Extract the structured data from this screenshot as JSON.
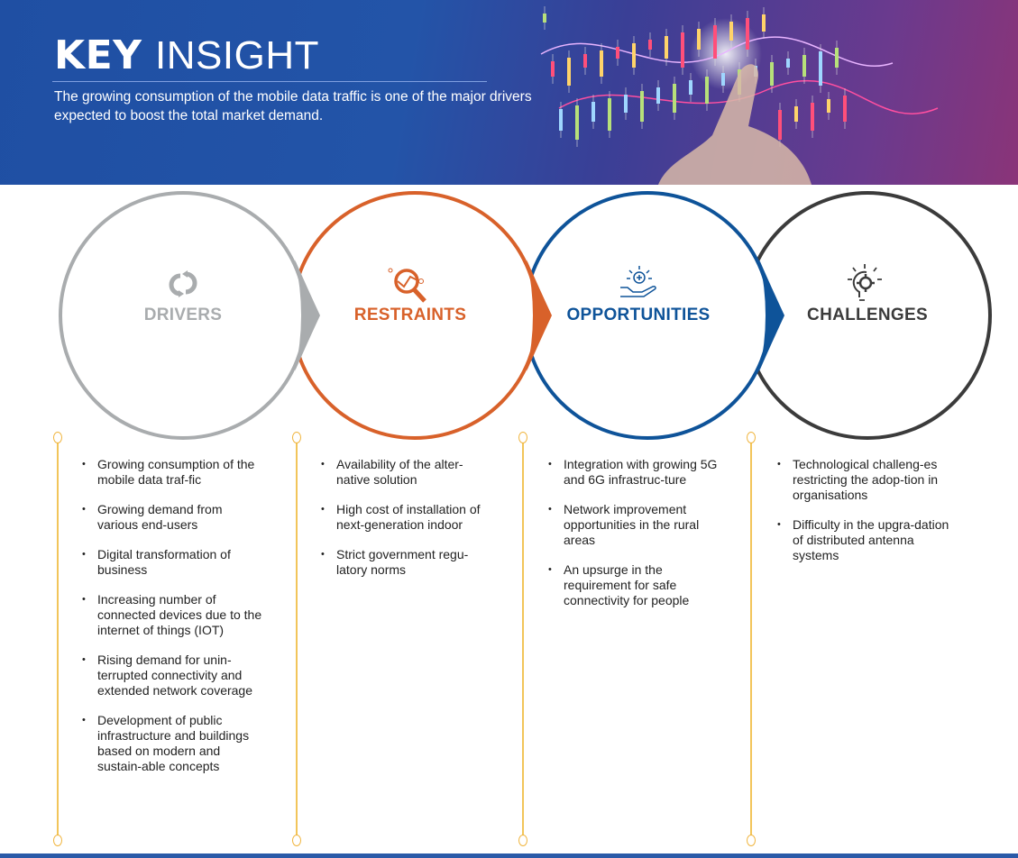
{
  "header": {
    "title_bold": "KEY",
    "title_light": "INSIGHT",
    "subtitle": "The growing consumption of the mobile data traffic is one of the major drivers expected to boost the total market demand."
  },
  "colors": {
    "drivers": "#a9acae",
    "restraints": "#d8612a",
    "opportunities": "#0e5399",
    "challenges": "#3b3b3b",
    "timeline": "#f2c55a"
  },
  "sections": [
    {
      "label": "DRIVERS",
      "icon": "cycle-arrows-icon",
      "items": [
        "Growing consumption of the mobile data traf-fic",
        "Growing demand from various end-users",
        "Digital transformation of business",
        "Increasing number of connected devices due to the internet of things (IOT)",
        "Rising demand for unin-terrupted connectivity and extended network coverage",
        "Development of public infrastructure and buildings based on modern and sustain-able concepts"
      ]
    },
    {
      "label": "RESTRAINTS",
      "icon": "magnifier-chart-icon",
      "items": [
        "Availability of the alter-native solution",
        "High cost of installation of next-generation indoor",
        "Strict government regu-latory norms"
      ]
    },
    {
      "label": "OPPORTUNITIES",
      "icon": "hand-sun-plus-icon",
      "items": [
        "Integration with growing 5G and 6G infrastruc-ture",
        "Network improvement opportunities in the rural areas",
        "An upsurge in the requirement for safe connectivity for people"
      ]
    },
    {
      "label": "CHALLENGES",
      "icon": "lightbulb-gear-icon",
      "items": [
        "Technological challeng-es restricting the adop-tion in organisations",
        "Difficulty in the upgra-dation of distributed antenna systems"
      ]
    }
  ]
}
